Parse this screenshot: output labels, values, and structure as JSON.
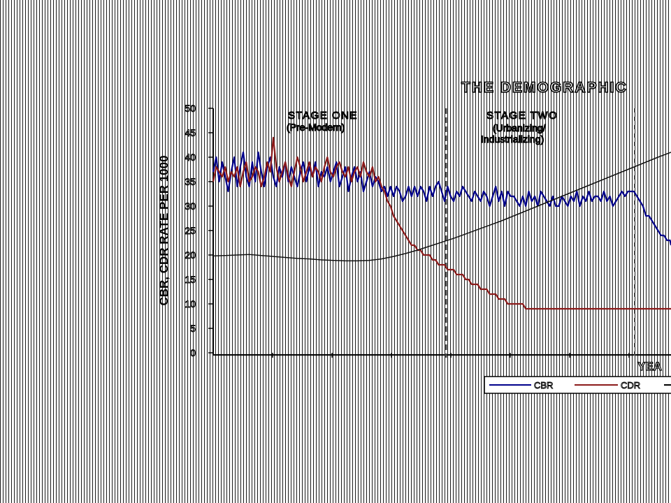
{
  "chart_data": {
    "type": "line",
    "title": "THE DEMOGRAPHIC",
    "xlabel": "YEA",
    "ylabel": "CBR, CDR RATE PER 1000",
    "ylim": [
      0,
      50
    ],
    "yticks": [
      "0",
      "5",
      "10",
      "15",
      "20",
      "25",
      "30",
      "35",
      "40",
      "45",
      "50"
    ],
    "grid": false,
    "legend_position": "bottom-right",
    "stages": [
      {
        "label_line1": "STAGE ONE",
        "label_line2": "(Pre-Modern)",
        "label_line3": ""
      },
      {
        "label_line1": "STAGE TWO",
        "label_line2": "(Urbanizing/",
        "label_line3": "Industrializing)"
      }
    ],
    "series": [
      {
        "name": "CBR",
        "color": "#00008b",
        "x": [
          0,
          5,
          10,
          15,
          20,
          25,
          30,
          35,
          40,
          45,
          50,
          55,
          60,
          65,
          70,
          75,
          80,
          85,
          90,
          95,
          100,
          105,
          110,
          115,
          120,
          125,
          130,
          135,
          140,
          145,
          150,
          155,
          160,
          165,
          170,
          175,
          180,
          185,
          190,
          195,
          200,
          205,
          210,
          215,
          220,
          225,
          230,
          235,
          240,
          245,
          250,
          255,
          260,
          265,
          270,
          275,
          280,
          285,
          290,
          295,
          300,
          305,
          310,
          315,
          320,
          325,
          330,
          335,
          340,
          345,
          350,
          355,
          360,
          365,
          370,
          375,
          380,
          385,
          390,
          395,
          400,
          405,
          410,
          415,
          420,
          425,
          430,
          435,
          440,
          445,
          450,
          455,
          460,
          465,
          470,
          475,
          480,
          485,
          490,
          495,
          500,
          505,
          510,
          515,
          520,
          525,
          530,
          535,
          540,
          545,
          550,
          555,
          560,
          565,
          570,
          575,
          580,
          585,
          590,
          595,
          600,
          605,
          610,
          615,
          620,
          625,
          630,
          635,
          640,
          645,
          650,
          655,
          660,
          665,
          670,
          675,
          680,
          685,
          690,
          695,
          700,
          705,
          710,
          715,
          720,
          725,
          730,
          735,
          740,
          745,
          750,
          755,
          760,
          765
        ],
        "values": [
          37,
          40,
          35,
          39,
          36,
          33,
          37,
          40,
          34,
          38,
          41,
          36,
          34,
          39,
          35,
          41,
          37,
          34,
          38,
          40,
          36,
          34,
          38,
          36,
          39,
          35,
          38,
          36,
          34,
          37,
          39,
          35,
          38,
          36,
          39,
          34,
          37,
          36,
          38,
          35,
          37,
          39,
          34,
          36,
          38,
          33,
          36,
          38,
          35,
          37,
          33,
          35,
          37,
          34,
          36,
          35,
          33,
          34,
          32,
          34,
          32,
          34,
          33,
          31,
          32,
          34,
          32,
          34,
          32,
          34,
          33,
          31,
          34,
          32,
          34,
          35,
          33,
          31,
          34,
          32,
          31,
          33,
          32,
          34,
          33,
          32,
          31,
          33,
          32,
          31,
          33,
          32,
          30,
          32,
          34,
          31,
          33,
          30,
          33,
          32,
          32,
          31,
          30,
          32,
          30,
          33,
          31,
          32,
          30,
          33,
          32,
          31,
          30,
          32,
          30,
          30,
          32,
          31,
          30,
          32,
          31,
          33,
          30,
          32,
          31,
          33,
          31,
          32,
          32,
          31,
          33,
          31,
          32,
          30,
          31,
          32,
          33,
          32,
          33,
          33,
          33,
          32,
          31,
          30,
          28,
          28,
          27,
          26,
          25,
          24,
          24,
          23,
          23,
          22
        ]
      },
      {
        "name": "CDR",
        "color": "#8b1a1a",
        "x": [
          0,
          5,
          10,
          15,
          20,
          25,
          30,
          35,
          40,
          45,
          50,
          55,
          60,
          65,
          70,
          75,
          80,
          85,
          90,
          95,
          100,
          105,
          110,
          115,
          120,
          125,
          130,
          135,
          140,
          145,
          150,
          155,
          160,
          165,
          170,
          175,
          180,
          185,
          190,
          195,
          200,
          205,
          210,
          215,
          220,
          225,
          230,
          235,
          240,
          245,
          250,
          255,
          260,
          265,
          270,
          275,
          280,
          285,
          290,
          295,
          300,
          305,
          310,
          315,
          320,
          325,
          330,
          335,
          340,
          345,
          350,
          355,
          360,
          365,
          370,
          375,
          380,
          385,
          390,
          395,
          400,
          405,
          410,
          415,
          420,
          425,
          430,
          435,
          440,
          445,
          450,
          455,
          460,
          465,
          470,
          475,
          480,
          485,
          490,
          495,
          500,
          505,
          510,
          515,
          520,
          525,
          530,
          535,
          540,
          545,
          550,
          555,
          560,
          565,
          570,
          575,
          580,
          585,
          590,
          595,
          600,
          605,
          610,
          615,
          620,
          625,
          630,
          635,
          640,
          645,
          650,
          655,
          660,
          665,
          670,
          675,
          680,
          685,
          690,
          695,
          700,
          705,
          710,
          715,
          720,
          725,
          730,
          735,
          740,
          745,
          750,
          755,
          760,
          765
        ],
        "values": [
          35,
          38,
          37,
          36,
          38,
          35,
          37,
          36,
          38,
          34,
          37,
          39,
          35,
          36,
          38,
          37,
          34,
          36,
          39,
          37,
          44,
          38,
          35,
          37,
          39,
          36,
          34,
          37,
          40,
          38,
          35,
          37,
          39,
          36,
          38,
          37,
          35,
          38,
          40,
          37,
          36,
          38,
          39,
          37,
          36,
          38,
          35,
          37,
          38,
          36,
          39,
          37,
          36,
          38,
          35,
          36,
          34,
          33,
          31,
          30,
          28,
          27,
          26,
          25,
          24,
          23,
          22,
          22,
          21,
          21,
          20,
          20,
          20,
          19,
          19,
          18,
          18,
          18,
          17,
          17,
          17,
          16,
          16,
          16,
          15,
          15,
          14,
          14,
          14,
          13,
          13,
          13,
          12,
          12,
          12,
          11,
          11,
          11,
          10,
          10,
          10,
          10,
          10,
          10,
          9,
          9,
          9,
          9,
          9,
          9,
          9,
          9,
          9,
          9,
          9,
          9,
          9,
          9,
          9,
          9,
          9,
          9,
          9,
          9,
          9,
          9,
          9,
          9,
          9,
          9,
          9,
          9,
          9,
          9,
          9,
          9,
          9,
          9,
          9,
          9,
          9,
          9,
          9,
          9,
          9,
          9,
          9,
          9,
          9,
          9,
          9,
          9,
          9,
          9
        ]
      },
      {
        "name": "",
        "color": "#111111",
        "x": [
          0,
          20,
          40,
          60,
          80,
          100,
          120,
          140,
          160,
          180,
          200,
          220,
          240,
          260,
          280,
          300,
          320,
          340,
          360,
          380,
          400,
          420,
          440,
          460,
          480,
          500,
          520,
          540,
          560,
          580,
          600,
          620,
          640,
          660,
          680,
          700,
          720,
          740,
          765
        ],
        "values": [
          19.8,
          19.9,
          20,
          20.1,
          19.9,
          19.7,
          19.5,
          19.3,
          19.2,
          19,
          18.9,
          18.8,
          18.8,
          18.9,
          19.2,
          19.7,
          20.3,
          21,
          21.8,
          22.6,
          23.4,
          24.3,
          25.2,
          26.1,
          27,
          28,
          29,
          30,
          31,
          32,
          33,
          34,
          35,
          36,
          37,
          38,
          39,
          40,
          41
        ]
      }
    ]
  }
}
